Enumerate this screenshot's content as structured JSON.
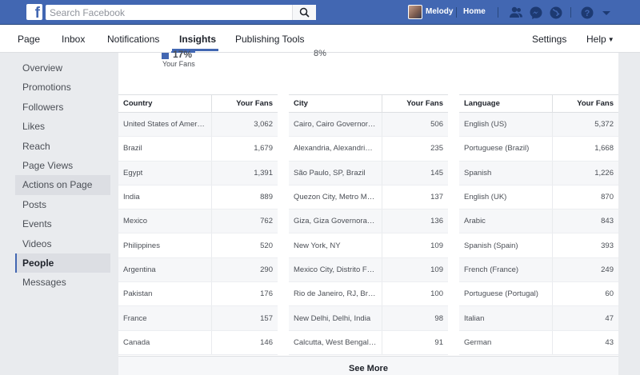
{
  "topbar": {
    "logo": "f",
    "search_placeholder": "Search Facebook",
    "user_name": "Melody",
    "home_label": "Home",
    "icons": [
      "friends-icon",
      "messenger-icon",
      "globe-icon",
      "help-icon",
      "chevron-down-icon"
    ]
  },
  "pagenav": {
    "items": [
      "Page",
      "Inbox",
      "Notifications",
      "Insights",
      "Publishing Tools"
    ],
    "active": "Insights",
    "settings": "Settings",
    "help": "Help"
  },
  "sidebar": {
    "items": [
      "Overview",
      "Promotions",
      "Followers",
      "Likes",
      "Reach",
      "Page Views",
      "Actions on Page",
      "Posts",
      "Events",
      "Videos",
      "People",
      "Messages"
    ],
    "hover": "Actions on Page",
    "active": "People"
  },
  "chart_remnant": {
    "pct_main": "17%",
    "pct_right": "8%",
    "legend_label": "Your Fans"
  },
  "tables": [
    {
      "col1": "Country",
      "col2": "Your Fans",
      "rows": [
        [
          "United States of America",
          "3,062"
        ],
        [
          "Brazil",
          "1,679"
        ],
        [
          "Egypt",
          "1,391"
        ],
        [
          "India",
          "889"
        ],
        [
          "Mexico",
          "762"
        ],
        [
          "Philippines",
          "520"
        ],
        [
          "Argentina",
          "290"
        ],
        [
          "Pakistan",
          "176"
        ],
        [
          "France",
          "157"
        ],
        [
          "Canada",
          "146"
        ]
      ]
    },
    {
      "col1": "City",
      "col2": "Your Fans",
      "rows": [
        [
          "Cairo, Cairo Governora…",
          "506"
        ],
        [
          "Alexandria, Alexandria …",
          "235"
        ],
        [
          "São Paulo, SP, Brazil",
          "145"
        ],
        [
          "Quezon City, Metro Ma…",
          "137"
        ],
        [
          "Giza, Giza Governorat…",
          "136"
        ],
        [
          "New York, NY",
          "109"
        ],
        [
          "Mexico City, Distrito Fe…",
          "109"
        ],
        [
          "Rio de Janeiro, RJ, Brazil",
          "100"
        ],
        [
          "New Delhi, Delhi, India",
          "98"
        ],
        [
          "Calcutta, West Bengal,…",
          "91"
        ]
      ]
    },
    {
      "col1": "Language",
      "col2": "Your Fans",
      "rows": [
        [
          "English (US)",
          "5,372"
        ],
        [
          "Portuguese (Brazil)",
          "1,668"
        ],
        [
          "Spanish",
          "1,226"
        ],
        [
          "English (UK)",
          "870"
        ],
        [
          "Arabic",
          "843"
        ],
        [
          "Spanish (Spain)",
          "393"
        ],
        [
          "French (France)",
          "249"
        ],
        [
          "Portuguese (Portugal)",
          "60"
        ],
        [
          "Italian",
          "47"
        ],
        [
          "German",
          "43"
        ]
      ]
    }
  ],
  "see_more": "See More",
  "colors": {
    "brand": "#4267b2",
    "background": "#e9ebee"
  }
}
